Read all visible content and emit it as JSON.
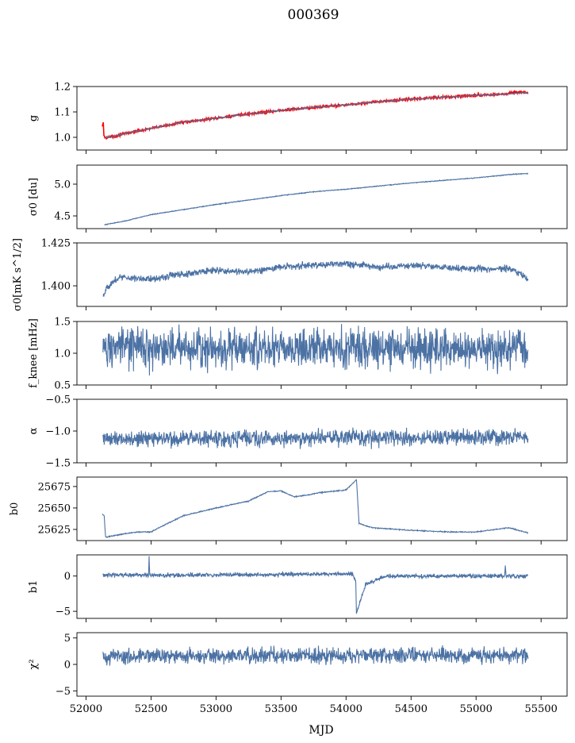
{
  "title": "000369",
  "xlabel": "MJD",
  "colors": {
    "line": "#4c72a4",
    "overlay": "#ff0000",
    "frame": "#000000"
  },
  "chart_data": {
    "type": "line",
    "title": "000369",
    "xlabel": "MJD",
    "xlim": [
      51930,
      55700
    ],
    "xticks": [
      52000,
      52500,
      53000,
      53500,
      54000,
      54500,
      55000,
      55500
    ],
    "xtick_labels": [
      "52000",
      "52500",
      "53000",
      "53500",
      "54000",
      "54500",
      "55000",
      "55500"
    ],
    "grid": false,
    "panels": [
      {
        "id": "g",
        "ylabel": "g",
        "ylim": [
          0.95,
          1.2
        ],
        "yticks": [
          1.0,
          1.1,
          1.2
        ],
        "ytick_labels": [
          "1.0",
          "1.1",
          "1.2"
        ],
        "series": [
          {
            "color": "#ff0000",
            "noise": 0.003,
            "x": [
              52125,
              52133,
              52137,
              52150,
              52200,
              52300,
              52500,
              52750,
              53000,
              53250,
              53500,
              53750,
              54000,
              54250,
              54500,
              54750,
              55000,
              55250,
              55300,
              55400
            ],
            "y": [
              1.04,
              1.062,
              1.005,
              0.999,
              1.002,
              1.015,
              1.035,
              1.06,
              1.075,
              1.092,
              1.106,
              1.118,
              1.128,
              1.14,
              1.15,
              1.158,
              1.165,
              1.171,
              1.178,
              1.176
            ]
          },
          {
            "color": "#4c72a4",
            "noise": 0.001,
            "x": [
              52150,
              52200,
              52300,
              52500,
              52750,
              53000,
              53250,
              53500,
              53750,
              54000,
              54250,
              54500,
              54750,
              55000,
              55250,
              55400
            ],
            "y": [
              0.999,
              1.002,
              1.015,
              1.035,
              1.06,
              1.075,
              1.092,
              1.106,
              1.118,
              1.128,
              1.14,
              1.15,
              1.158,
              1.165,
              1.171,
              1.176
            ]
          }
        ]
      },
      {
        "id": "sigma0",
        "ylabel": "σ0 [du]",
        "ylim": [
          4.3,
          5.3
        ],
        "yticks": [
          4.5,
          5.0
        ],
        "ytick_labels": [
          "4.5",
          "5.0"
        ],
        "series": [
          {
            "color": "#4c72a4",
            "noise": 0.004,
            "x": [
              52140,
              52300,
              52500,
              52750,
              53000,
              53250,
              53500,
              53750,
              54000,
              54250,
              54500,
              54750,
              55000,
              55250,
              55400
            ],
            "y": [
              4.36,
              4.42,
              4.52,
              4.6,
              4.68,
              4.75,
              4.82,
              4.88,
              4.92,
              4.97,
              5.02,
              5.06,
              5.1,
              5.15,
              5.17
            ]
          }
        ]
      },
      {
        "id": "sigma0_mk",
        "ylabel": "σ0[mK s^1/2]",
        "ylim": [
          1.388,
          1.425
        ],
        "yticks": [
          1.4,
          1.425
        ],
        "ytick_labels": [
          "1.400",
          "1.425"
        ],
        "series": [
          {
            "color": "#4c72a4",
            "noise": 0.0014,
            "x": [
              52130,
              52150,
              52250,
              52500,
              52750,
              53000,
              53250,
              53500,
              53750,
              54000,
              54250,
              54500,
              54750,
              55000,
              55250,
              55350,
              55400
            ],
            "y": [
              1.394,
              1.398,
              1.405,
              1.404,
              1.407,
              1.409,
              1.408,
              1.411,
              1.412,
              1.413,
              1.411,
              1.412,
              1.411,
              1.41,
              1.41,
              1.407,
              1.403
            ]
          }
        ]
      },
      {
        "id": "fknee",
        "ylabel": "f_knee [mHz]",
        "ylim": [
          0.5,
          1.5
        ],
        "yticks": [
          0.5,
          1.0,
          1.5
        ],
        "ytick_labels": [
          "0.5",
          "1.0",
          "1.5"
        ],
        "series": [
          {
            "color": "#4c72a4",
            "noise": 0.22,
            "x": [
              52130,
              55400
            ],
            "y": [
              1.09,
              1.07
            ]
          }
        ]
      },
      {
        "id": "alpha",
        "ylabel": "α",
        "ylim": [
          -1.5,
          -0.5
        ],
        "yticks": [
          -1.5,
          -1.0,
          -0.5
        ],
        "ytick_labels": [
          "−1.5",
          "−1.0",
          "−0.5"
        ],
        "series": [
          {
            "color": "#4c72a4",
            "noise": 0.09,
            "x": [
              52130,
              55400
            ],
            "y": [
              -1.12,
              -1.1
            ]
          }
        ]
      },
      {
        "id": "b0",
        "ylabel": "b0",
        "ylim": [
          25612,
          25686
        ],
        "yticks": [
          25625,
          25650,
          25675
        ],
        "ytick_labels": [
          "25625",
          "25650",
          "25675"
        ],
        "series": [
          {
            "color": "#4c72a4",
            "noise": 0.4,
            "x": [
              52125,
              52140,
              52150,
              52300,
              52400,
              52500,
              52600,
              52750,
              53000,
              53250,
              53400,
              53500,
              53600,
              53700,
              53800,
              54000,
              54080,
              54100,
              54200,
              54500,
              54800,
              55000,
              55250,
              55400
            ],
            "y": [
              25643,
              25641,
              25616,
              25620,
              25622,
              25622,
              25630,
              25641,
              25650,
              25658,
              25669,
              25670,
              25663,
              25665,
              25668,
              25671,
              25683,
              25632,
              25627,
              25624,
              25622,
              25622,
              25627,
              25621
            ]
          }
        ]
      },
      {
        "id": "b1",
        "ylabel": "b1",
        "ylim": [
          -6,
          3
        ],
        "yticks": [
          -5,
          0
        ],
        "ytick_labels": [
          "−5",
          "0"
        ],
        "series": [
          {
            "color": "#4c72a4",
            "noise": 0.2,
            "x": [
              52130,
              52480,
              52485,
              52490,
              54050,
              54075,
              54080,
              54150,
              54300,
              55220,
              55225,
              55230,
              55400
            ],
            "y": [
              0.2,
              0.1,
              2.8,
              0.1,
              0.3,
              -0.8,
              -5.3,
              -1.2,
              0,
              0,
              1.5,
              0,
              0
            ]
          }
        ]
      },
      {
        "id": "chi2",
        "ylabel": "χ²",
        "ylim": [
          -6,
          6
        ],
        "yticks": [
          -5,
          0,
          5
        ],
        "ytick_labels": [
          "−5",
          "0",
          "5"
        ],
        "series": [
          {
            "color": "#4c72a4",
            "noise": 1.0,
            "x": [
              52130,
              55400
            ],
            "y": [
              1.6,
              1.7
            ]
          }
        ]
      }
    ]
  }
}
